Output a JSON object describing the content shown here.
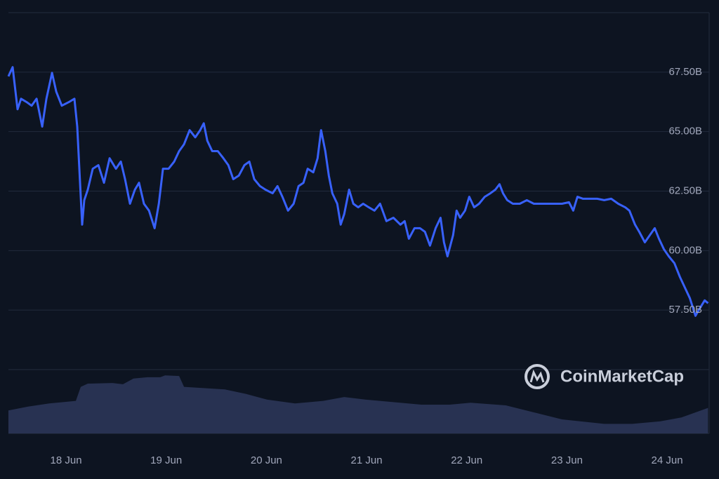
{
  "chart_data": {
    "type": "line",
    "color": "#3861fb",
    "watermark": "CoinMarketCap",
    "xlim": [
      17.425,
      24.42
    ],
    "xticks": [
      {
        "value": 18,
        "label": "18 Jun"
      },
      {
        "value": 19,
        "label": "19 Jun"
      },
      {
        "value": 20,
        "label": "20 Jun"
      },
      {
        "value": 21,
        "label": "21 Jun"
      },
      {
        "value": 22,
        "label": "22 Jun"
      },
      {
        "value": 23,
        "label": "23 Jun"
      },
      {
        "value": 24,
        "label": "24 Jun"
      }
    ],
    "ylim": [
      55,
      70
    ],
    "yticks": [
      {
        "value": 57.5,
        "label": "57.50B"
      },
      {
        "value": 60,
        "label": "60.00B"
      },
      {
        "value": 62.5,
        "label": "62.50B"
      },
      {
        "value": 65,
        "label": "65.00B"
      },
      {
        "value": 67.5,
        "label": "67.50B"
      }
    ],
    "grid": true,
    "x": [
      17.425,
      17.467,
      17.516,
      17.551,
      17.607,
      17.656,
      17.706,
      17.762,
      17.804,
      17.86,
      17.902,
      17.958,
      18.028,
      18.084,
      18.112,
      18.133,
      18.161,
      18.182,
      18.217,
      18.267,
      18.323,
      18.379,
      18.435,
      18.498,
      18.547,
      18.589,
      18.638,
      18.687,
      18.729,
      18.778,
      18.828,
      18.884,
      18.926,
      18.968,
      19.024,
      19.08,
      19.129,
      19.178,
      19.234,
      19.29,
      19.339,
      19.375,
      19.41,
      19.459,
      19.515,
      19.571,
      19.62,
      19.669,
      19.725,
      19.781,
      19.83,
      19.879,
      19.936,
      19.992,
      20.062,
      20.111,
      20.16,
      20.216,
      20.272,
      20.321,
      20.37,
      20.412,
      20.468,
      20.511,
      20.546,
      20.588,
      20.623,
      20.658,
      20.707,
      20.742,
      20.777,
      20.826,
      20.868,
      20.917,
      20.966,
      21.022,
      21.079,
      21.135,
      21.198,
      21.268,
      21.338,
      21.38,
      21.422,
      21.478,
      21.534,
      21.583,
      21.633,
      21.689,
      21.738,
      21.773,
      21.808,
      21.864,
      21.899,
      21.934,
      21.983,
      22.025,
      22.074,
      22.123,
      22.18,
      22.236,
      22.285,
      22.327,
      22.362,
      22.404,
      22.46,
      22.53,
      22.6,
      22.67,
      22.741,
      22.811,
      22.881,
      22.951,
      23.021,
      23.063,
      23.105,
      23.161,
      23.231,
      23.302,
      23.372,
      23.442,
      23.512,
      23.582,
      23.624,
      23.68,
      23.722,
      23.778,
      23.828,
      23.877,
      23.919,
      23.968,
      24.017,
      24.073,
      24.129,
      24.178,
      24.227,
      24.283,
      24.325,
      24.375,
      24.409
    ],
    "values": [
      67.32,
      67.71,
      65.94,
      66.38,
      66.24,
      66.09,
      66.38,
      65.21,
      66.38,
      67.47,
      66.68,
      66.09,
      66.24,
      66.38,
      65.21,
      63.44,
      61.09,
      62.12,
      62.56,
      63.44,
      63.59,
      62.85,
      63.88,
      63.44,
      63.74,
      63.0,
      61.97,
      62.56,
      62.85,
      61.97,
      61.68,
      60.94,
      61.97,
      63.44,
      63.44,
      63.74,
      64.18,
      64.47,
      65.06,
      64.76,
      65.06,
      65.35,
      64.62,
      64.18,
      64.18,
      63.88,
      63.59,
      63.0,
      63.15,
      63.59,
      63.74,
      63.0,
      62.71,
      62.56,
      62.41,
      62.71,
      62.26,
      61.68,
      61.97,
      62.71,
      62.85,
      63.44,
      63.29,
      63.88,
      65.06,
      64.18,
      63.15,
      62.41,
      61.97,
      61.09,
      61.53,
      62.56,
      61.97,
      61.82,
      61.97,
      61.82,
      61.68,
      61.97,
      61.24,
      61.38,
      61.09,
      61.24,
      60.5,
      60.94,
      60.94,
      60.79,
      60.21,
      60.94,
      61.38,
      60.35,
      59.76,
      60.65,
      61.68,
      61.38,
      61.68,
      62.26,
      61.82,
      61.97,
      62.26,
      62.41,
      62.56,
      62.79,
      62.41,
      62.12,
      61.97,
      61.97,
      62.12,
      61.97,
      61.97,
      61.97,
      61.97,
      61.97,
      62.03,
      61.68,
      62.26,
      62.18,
      62.18,
      62.18,
      62.12,
      62.18,
      61.97,
      61.82,
      61.68,
      61.09,
      60.79,
      60.35,
      60.65,
      60.94,
      60.5,
      60.06,
      59.76,
      59.47,
      58.88,
      58.44,
      58.0,
      57.26,
      57.56,
      57.91,
      57.79
    ],
    "volume": {
      "color": "#283252",
      "ylim": [
        0,
        100
      ],
      "x": [
        17.425,
        17.621,
        17.832,
        18.098,
        18.147,
        18.217,
        18.463,
        18.568,
        18.673,
        18.813,
        18.94,
        18.989,
        19.129,
        19.178,
        19.375,
        19.585,
        19.795,
        20.006,
        20.286,
        20.567,
        20.777,
        20.987,
        21.268,
        21.548,
        21.829,
        22.039,
        22.39,
        22.67,
        22.951,
        23.372,
        23.652,
        23.933,
        24.143,
        24.409
      ],
      "values": [
        36,
        42,
        47,
        51,
        73,
        78,
        79,
        77,
        86,
        88,
        88,
        91,
        90,
        73,
        71,
        69,
        62,
        53,
        47,
        51,
        57,
        53,
        49,
        45,
        45,
        48,
        44,
        33,
        22,
        15,
        15,
        19,
        25,
        40
      ]
    }
  }
}
